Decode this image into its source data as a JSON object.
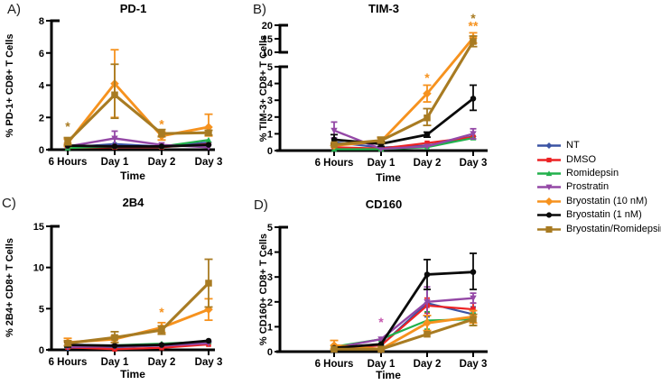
{
  "legend": {
    "position": "right",
    "items": [
      {
        "label": "NT",
        "color": "#3B54A4",
        "marker": "diamond"
      },
      {
        "label": "DMSO",
        "color": "#EC2224",
        "marker": "square"
      },
      {
        "label": "Romidepsin",
        "color": "#22B14C",
        "marker": "triangle-up"
      },
      {
        "label": "Prostratin",
        "color": "#9448A6",
        "marker": "triangle-down"
      },
      {
        "label": "Bryostatin (10 nM)",
        "color": "#F6921E",
        "marker": "diamond"
      },
      {
        "label": "Bryostatin (1 nM)",
        "color": "#0A0A0A",
        "marker": "circle"
      },
      {
        "label": "Bryostatin/Romidepsin",
        "color": "#A87B22",
        "marker": "square"
      }
    ]
  },
  "chart_data": [
    {
      "type": "line",
      "panel_label": "A)",
      "title": "PD-1",
      "xlabel": "Time",
      "ylabel": "% PD-1+ CD8+ T Cells",
      "categories": [
        "6 Hours",
        "Day 1",
        "Day 2",
        "Day 3"
      ],
      "axis_segments": [
        {
          "min": 0,
          "max": 8,
          "ticks": [
            0,
            2,
            4,
            6,
            8
          ]
        }
      ],
      "series": [
        {
          "name": "NT",
          "values": [
            0.15,
            0.35,
            0.2,
            0.45
          ]
        },
        {
          "name": "DMSO",
          "values": [
            0.1,
            0.15,
            0.15,
            0.35
          ]
        },
        {
          "name": "Romidepsin",
          "values": [
            0.1,
            0.2,
            0.2,
            0.6
          ]
        },
        {
          "name": "Prostratin",
          "values": [
            0.2,
            0.7,
            0.3,
            0.15
          ],
          "err_lo": [
            null,
            0.3,
            null,
            null
          ],
          "err_hi": [
            null,
            1.15,
            null,
            null
          ]
        },
        {
          "name": "Bryostatin (10 nM)",
          "values": [
            0.4,
            4.1,
            0.85,
            1.4
          ],
          "err_lo": [
            0.2,
            2.0,
            0.6,
            0.85
          ],
          "err_hi": [
            0.65,
            6.2,
            1.1,
            2.2
          ]
        },
        {
          "name": "Bryostatin (1 nM)",
          "values": [
            0.25,
            0.2,
            0.2,
            0.3
          ]
        },
        {
          "name": "Bryostatin/Romidepsin",
          "values": [
            0.5,
            3.4,
            1.0,
            1.05
          ],
          "err_lo": [
            0.3,
            1.95,
            0.8,
            0.9
          ],
          "err_hi": [
            0.75,
            5.3,
            1.25,
            1.2
          ]
        }
      ],
      "annotations": [
        {
          "category": "6 Hours",
          "xi": 0,
          "value": 1.45,
          "text": "*",
          "color": "#A87B22"
        },
        {
          "category": "Day 2",
          "xi": 2,
          "value": 1.6,
          "text": "*",
          "color": "#F6921E"
        }
      ]
    },
    {
      "type": "line",
      "panel_label": "B)",
      "title": "TIM-3",
      "xlabel": "Time",
      "ylabel": "% TIM-3+ CD8+ T Cells",
      "categories": [
        "6 Hours",
        "Day 1",
        "Day 2",
        "Day 3"
      ],
      "axis_segments": [
        {
          "min": 0,
          "max": 5,
          "ticks": [
            0,
            1,
            2,
            3,
            4,
            5
          ]
        },
        {
          "min": 10,
          "max": 20,
          "ticks": [
            10,
            15,
            20
          ]
        }
      ],
      "series": [
        {
          "name": "NT",
          "values": [
            0.5,
            0.18,
            0.3,
            0.85
          ]
        },
        {
          "name": "DMSO",
          "values": [
            0.2,
            0.12,
            0.45,
            0.8
          ]
        },
        {
          "name": "Romidepsin",
          "values": [
            0.08,
            0.08,
            0.2,
            0.75
          ]
        },
        {
          "name": "Prostratin",
          "values": [
            1.2,
            0.1,
            0.25,
            1.0
          ],
          "err_lo": [
            0.75,
            null,
            null,
            0.7
          ],
          "err_hi": [
            1.7,
            null,
            null,
            1.3
          ]
        },
        {
          "name": "Bryostatin (10 nM)",
          "values": [
            0.3,
            0.55,
            3.4,
            15.3
          ],
          "err_lo": [
            null,
            0.4,
            2.9,
            13.4
          ],
          "err_hi": [
            null,
            0.75,
            3.9,
            17.2
          ]
        },
        {
          "name": "Bryostatin (1 nM)",
          "values": [
            0.65,
            0.4,
            0.95,
            3.1
          ],
          "err_lo": [
            0.4,
            0.25,
            0.8,
            2.4
          ],
          "err_hi": [
            0.95,
            0.55,
            1.1,
            3.9
          ]
        },
        {
          "name": "Bryostatin/Romidepsin",
          "values": [
            0.35,
            0.6,
            1.95,
            14.0
          ],
          "err_lo": [
            null,
            0.45,
            1.5,
            12.1
          ],
          "err_hi": [
            null,
            0.8,
            2.5,
            16.0
          ]
        }
      ],
      "annotations": [
        {
          "category": "Day 2",
          "xi": 2,
          "value": 4.35,
          "text": "*",
          "color": "#F6921E"
        },
        {
          "category": "Day 3",
          "xi": 3,
          "value": 22.6,
          "text": "*",
          "color": "#A87B22"
        },
        {
          "category": "Day 3",
          "xi": 3,
          "value": 19.8,
          "text": "**",
          "color": "#F6921E"
        }
      ]
    },
    {
      "type": "line",
      "panel_label": "C)",
      "title": "2B4",
      "xlabel": "Time",
      "ylabel": "% 2B4+ CD8+ T Cells",
      "categories": [
        "6 Hours",
        "Day 1",
        "Day 2",
        "Day 3"
      ],
      "axis_segments": [
        {
          "min": 0,
          "max": 15,
          "ticks": [
            0,
            5,
            10,
            15
          ]
        }
      ],
      "series": [
        {
          "name": "NT",
          "values": [
            0.25,
            0.3,
            0.55,
            0.9
          ]
        },
        {
          "name": "DMSO",
          "values": [
            0.3,
            0.08,
            0.25,
            0.65
          ]
        },
        {
          "name": "Romidepsin",
          "values": [
            0.5,
            0.55,
            0.75,
            1.0
          ]
        },
        {
          "name": "Prostratin",
          "values": [
            0.35,
            0.4,
            0.5,
            0.8
          ]
        },
        {
          "name": "Bryostatin (10 nM)",
          "values": [
            0.9,
            1.3,
            2.7,
            4.9
          ],
          "err_lo": [
            0.5,
            0.9,
            2.1,
            3.6
          ],
          "err_hi": [
            1.4,
            1.7,
            3.3,
            6.2
          ]
        },
        {
          "name": "Bryostatin (1 nM)",
          "values": [
            0.6,
            0.5,
            0.6,
            1.1
          ],
          "err_lo": [
            0.35,
            null,
            null,
            null
          ],
          "err_hi": [
            0.95,
            null,
            null,
            null
          ]
        },
        {
          "name": "Bryostatin/Romidepsin",
          "values": [
            0.8,
            1.5,
            2.4,
            8.1
          ],
          "err_lo": [
            0.5,
            0.9,
            1.9,
            5.2
          ],
          "err_hi": [
            1.1,
            2.2,
            2.9,
            11.0
          ]
        }
      ],
      "annotations": [
        {
          "category": "Day 2",
          "xi": 2,
          "value": 4.6,
          "text": "*",
          "color": "#F6921E"
        }
      ]
    },
    {
      "type": "line",
      "panel_label": "D)",
      "title": "CD160",
      "xlabel": "Time",
      "ylabel": "% CD160+ CD8+ T Cells",
      "categories": [
        "6 Hours",
        "Day 1",
        "Day 2",
        "Day 3"
      ],
      "axis_segments": [
        {
          "min": 0,
          "max": 5,
          "ticks": [
            0,
            1,
            2,
            3,
            4,
            5
          ]
        }
      ],
      "series": [
        {
          "name": "NT",
          "values": [
            0.15,
            0.25,
            1.95,
            1.5
          ],
          "err_lo": [
            null,
            null,
            1.4,
            1.2
          ],
          "err_hi": [
            null,
            null,
            2.5,
            1.8
          ]
        },
        {
          "name": "DMSO",
          "values": [
            0.15,
            0.25,
            1.85,
            1.7
          ],
          "err_lo": [
            null,
            null,
            1.55,
            1.45
          ],
          "err_hi": [
            null,
            null,
            2.15,
            1.95
          ]
        },
        {
          "name": "Romidepsin",
          "values": [
            0.2,
            0.5,
            1.25,
            1.3
          ],
          "err_lo": [
            null,
            null,
            0.9,
            1.05
          ],
          "err_hi": [
            null,
            null,
            1.6,
            1.55
          ]
        },
        {
          "name": "Prostratin",
          "values": [
            0.15,
            0.5,
            2.0,
            2.15
          ],
          "err_lo": [
            null,
            null,
            1.45,
            1.95
          ],
          "err_hi": [
            null,
            null,
            2.6,
            2.35
          ]
        },
        {
          "name": "Bryostatin (10 nM)",
          "values": [
            0.25,
            0.1,
            1.15,
            1.4
          ],
          "err_lo": [
            0.1,
            null,
            0.85,
            1.15
          ],
          "err_hi": [
            0.45,
            null,
            1.45,
            1.65
          ]
        },
        {
          "name": "Bryostatin (1 nM)",
          "values": [
            0.15,
            0.3,
            3.1,
            3.2
          ],
          "err_lo": [
            null,
            null,
            2.5,
            2.5
          ],
          "err_hi": [
            null,
            null,
            3.7,
            3.95
          ]
        },
        {
          "name": "Bryostatin/Romidepsin",
          "values": [
            0.1,
            0.1,
            0.7,
            1.3
          ],
          "err_lo": [
            null,
            null,
            null,
            1.05
          ],
          "err_hi": [
            null,
            null,
            null,
            1.5
          ]
        }
      ],
      "annotations": [
        {
          "category": "Day 1",
          "xi": 1,
          "value": 1.2,
          "text": "*",
          "color": "#C657AE"
        }
      ]
    }
  ]
}
